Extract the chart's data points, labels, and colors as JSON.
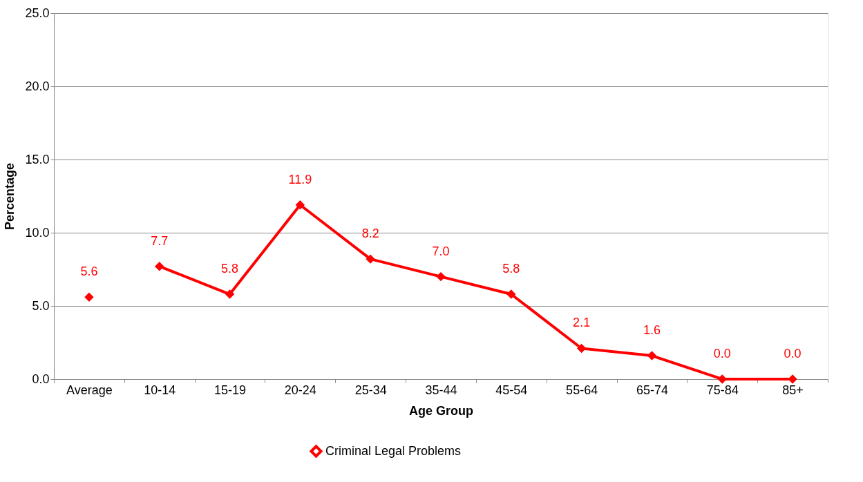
{
  "chart_data": {
    "type": "line",
    "xlabel": "Age Group",
    "ylabel": "Percentage",
    "categories": [
      "Average",
      "10-14",
      "15-19",
      "20-24",
      "25-34",
      "35-44",
      "45-54",
      "55-64",
      "65-74",
      "75-84",
      "85+"
    ],
    "series": [
      {
        "name": "Criminal Legal Problems",
        "color": "#ff0000",
        "values": [
          null,
          7.7,
          5.8,
          11.9,
          8.2,
          7.0,
          5.8,
          2.1,
          1.6,
          0.0,
          0.0
        ],
        "value_labels": [
          null,
          "7.7",
          "5.8",
          "11.9",
          "8.2",
          "7.0",
          "5.8",
          "2.1",
          "1.6",
          "0.0",
          "0.0"
        ]
      },
      {
        "type": "scatter",
        "color": "#ff0000",
        "values": [
          5.6,
          null,
          null,
          null,
          null,
          null,
          null,
          null,
          null,
          null,
          null
        ],
        "value_labels": [
          "5.6",
          null,
          null,
          null,
          null,
          null,
          null,
          null,
          null,
          null,
          null
        ]
      }
    ],
    "ylim": [
      0,
      25
    ],
    "yticks": [
      {
        "value": 0,
        "label": "0.0"
      },
      {
        "value": 5,
        "label": "5.0"
      },
      {
        "value": 10,
        "label": "10.0"
      },
      {
        "value": 15,
        "label": "15.0"
      },
      {
        "value": 20,
        "label": "20.0"
      },
      {
        "value": 25,
        "label": "25.0"
      }
    ],
    "grid": "y",
    "legend": "bottom",
    "marker": "diamond",
    "line_style": "solid"
  }
}
